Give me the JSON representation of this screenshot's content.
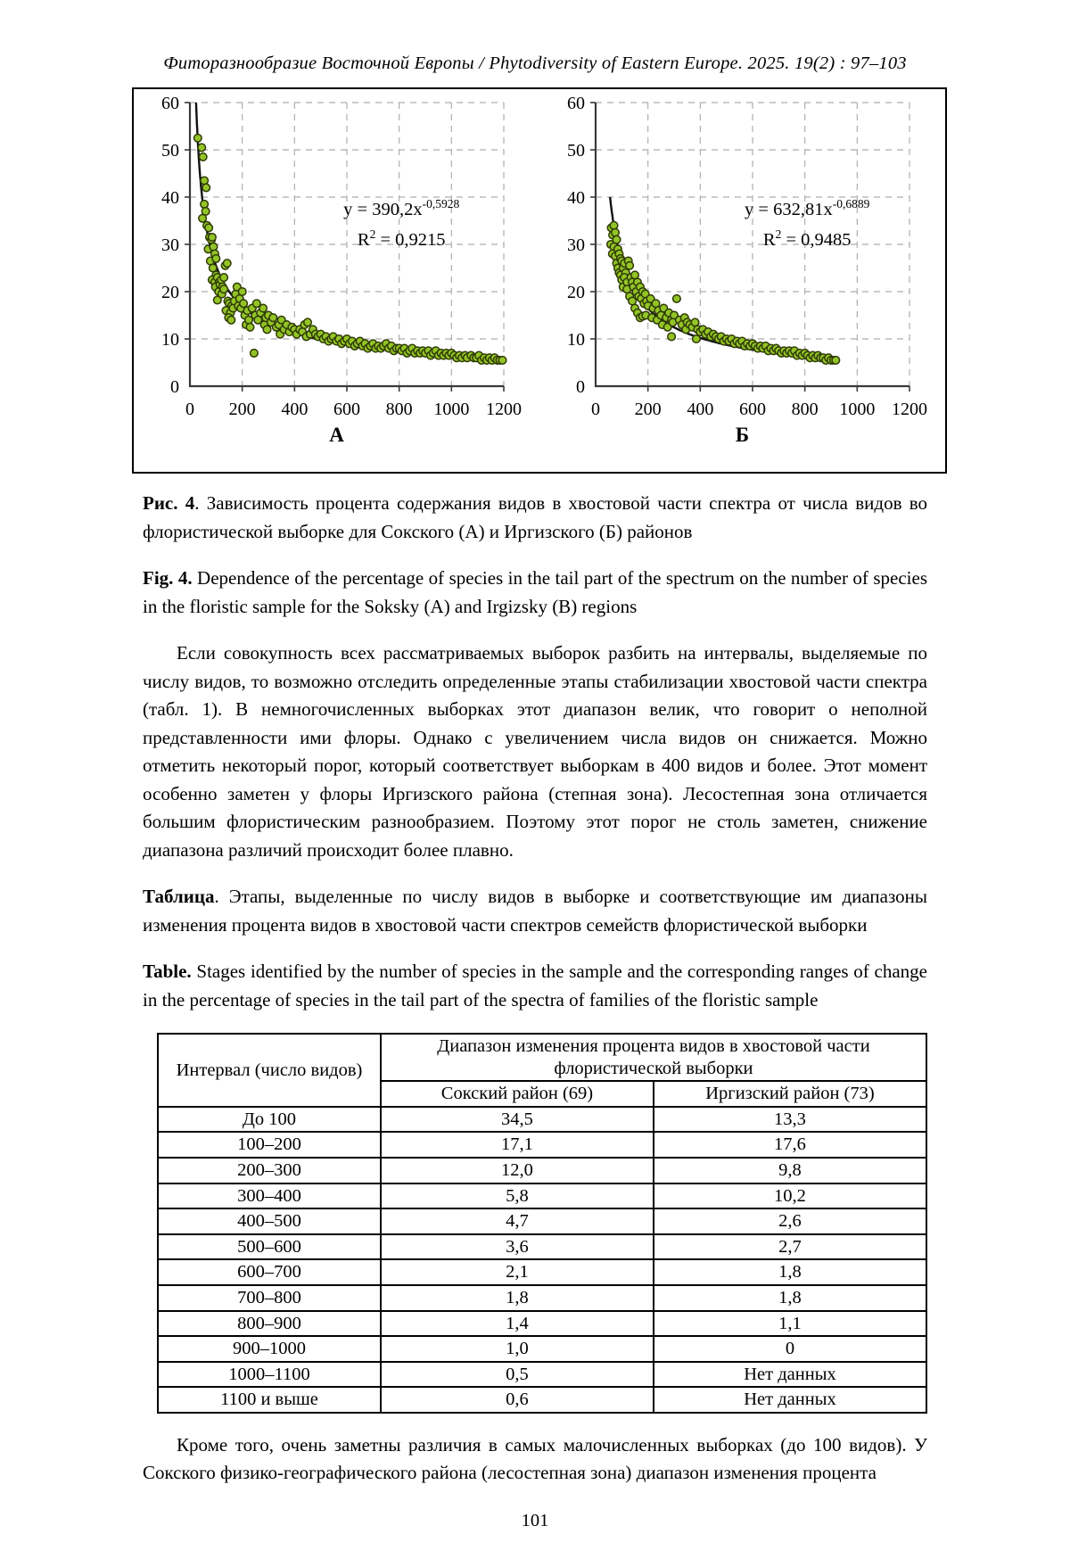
{
  "page": {
    "running_head": "Фиторазнообразие Восточной Европы / Phytodiversity of Eastern Europe. 2025. 19(2) : 97–103",
    "page_number": "101"
  },
  "figure": {
    "caption_ru_bold": "Рис. 4",
    "caption_ru_rest": ". Зависимость процента содержания видов в хвостовой части спектра от числа видов во флористической выборке для Сокского (А) и Иргизского (Б) районов",
    "caption_en_bold": "Fig. 4.",
    "caption_en_rest": " Dependence of the percentage of species in the tail part of the spectrum on the number of species in the floristic sample for the Soksky (A) and Irgizsky (B) regions"
  },
  "body": {
    "paragraph_1": "Если совокупность всех рассматриваемых выборок разбить на интервалы, выделяемые по числу видов, то возможно отследить определенные этапы стабилизации хвостовой части спектра (табл. 1). В немногочисленных выборках этот диапазон велик, что говорит о неполной представленности ими флоры. Однако с увеличением числа видов он снижается. Можно отметить некоторый порог, который соответствует выборкам в 400 видов и более. Этот момент особенно заметен у флоры Иргизского района (степная зона). Лесостепная зона отличается большим флористическим разнообразием. Поэтому этот порог не столь заметен, снижение диапазона различий происходит более плавно.",
    "paragraph_2": "Кроме того, очень заметны различия в самых малочисленных выборках (до 100 видов). У Сокского физико-географического района (лесостепная зона) диапазон изменения процента"
  },
  "table_block": {
    "caption_ru_bold": "Таблица",
    "caption_ru_rest": ". Этапы, выделенные по числу видов в выборке и соответствующие им диапазоны изменения процента видов в хвостовой части спектров семейств флористической выборки",
    "caption_en_bold": "Table.",
    "caption_en_rest": " Stages identified by the number of species in the sample and the corresponding ranges of change in the percentage of species in the tail part of the spectra of families of the floristic sample",
    "interval_header": "Интервал (число видов)",
    "span_header": "Диапазон изменения процента видов в хвостовой части флористической выборки",
    "region_headers": [
      "Сокский район (69)",
      "Иргизский район (73)"
    ],
    "rows": [
      [
        "До 100",
        "34,5",
        "13,3"
      ],
      [
        "100–200",
        "17,1",
        "17,6"
      ],
      [
        "200–300",
        "12,0",
        "9,8"
      ],
      [
        "300–400",
        "5,8",
        "10,2"
      ],
      [
        "400–500",
        "4,7",
        "2,6"
      ],
      [
        "500–600",
        "3,6",
        "2,7"
      ],
      [
        "600–700",
        "2,1",
        "1,8"
      ],
      [
        "700–800",
        "1,8",
        "1,8"
      ],
      [
        "800–900",
        "1,4",
        "1,1"
      ],
      [
        "900–1000",
        "1,0",
        "0"
      ],
      [
        "1000–1100",
        "0,5",
        "Нет данных"
      ],
      [
        "1100 и выше",
        "0,6",
        "Нет данных"
      ]
    ]
  },
  "chart_data": [
    {
      "type": "scatter",
      "label": "А",
      "equation": {
        "base": "y = 390,2x",
        "exponent": "-0,5928"
      },
      "r2": {
        "base": "R",
        "sup": "2",
        "value": " = 0,9215"
      },
      "trend": {
        "a": 390.2,
        "b": -0.5928,
        "x_min": 23.5,
        "x_max": 1200
      },
      "xlim": [
        0,
        1200
      ],
      "ylim": [
        0,
        60
      ],
      "x_ticks": [
        0,
        200,
        400,
        600,
        800,
        1000,
        1200
      ],
      "y_ticks": [
        0,
        10,
        20,
        30,
        40,
        50,
        60
      ],
      "grid": "dashed",
      "point_color": "#92c426",
      "point_stroke": "#2f3a05",
      "line_color": "#111111",
      "points": [
        [
          30,
          52.5
        ],
        [
          45,
          50.5
        ],
        [
          50,
          48.5
        ],
        [
          55,
          43.5
        ],
        [
          62,
          42
        ],
        [
          55,
          38.5
        ],
        [
          60,
          37
        ],
        [
          48,
          35.5
        ],
        [
          65,
          34
        ],
        [
          72,
          33.5
        ],
        [
          75,
          31.5
        ],
        [
          82,
          31
        ],
        [
          70,
          29
        ],
        [
          85,
          31.5
        ],
        [
          90,
          29.5
        ],
        [
          78,
          26.5
        ],
        [
          95,
          28
        ],
        [
          100,
          27
        ],
        [
          88,
          25
        ],
        [
          100,
          23.5
        ],
        [
          85,
          22.5
        ],
        [
          95,
          22
        ],
        [
          105,
          23
        ],
        [
          112,
          22
        ],
        [
          98,
          21
        ],
        [
          110,
          20
        ],
        [
          115,
          21.5
        ],
        [
          120,
          22.5
        ],
        [
          105,
          18.2
        ],
        [
          122,
          19.5
        ],
        [
          125,
          21
        ],
        [
          130,
          23
        ],
        [
          135,
          25.5
        ],
        [
          142,
          26
        ],
        [
          130,
          20.5
        ],
        [
          145,
          18
        ],
        [
          150,
          17.5
        ],
        [
          138,
          16
        ],
        [
          155,
          15.5
        ],
        [
          160,
          17
        ],
        [
          148,
          14.5
        ],
        [
          165,
          16.5
        ],
        [
          170,
          18
        ],
        [
          175,
          19.5
        ],
        [
          180,
          21
        ],
        [
          158,
          14
        ],
        [
          185,
          17
        ],
        [
          190,
          18.5
        ],
        [
          200,
          20
        ],
        [
          195,
          16.5
        ],
        [
          205,
          17.5
        ],
        [
          210,
          15
        ],
        [
          220,
          16
        ],
        [
          215,
          13
        ],
        [
          225,
          14
        ],
        [
          230,
          12.5
        ],
        [
          238,
          16.5
        ],
        [
          245,
          7
        ],
        [
          250,
          15
        ],
        [
          255,
          17.5
        ],
        [
          260,
          14
        ],
        [
          270,
          15.5
        ],
        [
          280,
          16.5
        ],
        [
          285,
          13
        ],
        [
          290,
          14.5
        ],
        [
          300,
          15
        ],
        [
          295,
          12
        ],
        [
          310,
          13.5
        ],
        [
          318,
          14.5
        ],
        [
          330,
          12.5
        ],
        [
          340,
          13
        ],
        [
          350,
          14
        ],
        [
          345,
          11
        ],
        [
          360,
          12
        ],
        [
          370,
          13
        ],
        [
          380,
          11.5
        ],
        [
          390,
          12.5
        ],
        [
          400,
          12
        ],
        [
          408,
          11
        ],
        [
          420,
          12
        ],
        [
          430,
          11.5
        ],
        [
          438,
          13
        ],
        [
          450,
          13.5
        ],
        [
          445,
          10.5
        ],
        [
          460,
          11
        ],
        [
          470,
          12
        ],
        [
          480,
          11
        ],
        [
          490,
          10.5
        ],
        [
          500,
          11
        ],
        [
          510,
          10
        ],
        [
          520,
          10.5
        ],
        [
          530,
          9.5
        ],
        [
          540,
          10
        ],
        [
          548,
          10.5
        ],
        [
          560,
          9.5
        ],
        [
          570,
          10
        ],
        [
          580,
          9
        ],
        [
          590,
          9.5
        ],
        [
          600,
          10
        ],
        [
          610,
          9
        ],
        [
          620,
          9.5
        ],
        [
          630,
          8.5
        ],
        [
          640,
          9
        ],
        [
          650,
          9.5
        ],
        [
          660,
          8.5
        ],
        [
          670,
          9
        ],
        [
          680,
          8
        ],
        [
          690,
          8.5
        ],
        [
          700,
          9
        ],
        [
          710,
          8
        ],
        [
          720,
          8.5
        ],
        [
          730,
          8
        ],
        [
          740,
          8.5
        ],
        [
          750,
          9
        ],
        [
          760,
          8
        ],
        [
          770,
          8.5
        ],
        [
          780,
          7.5
        ],
        [
          790,
          8
        ],
        [
          800,
          8
        ],
        [
          810,
          7.5
        ],
        [
          820,
          8
        ],
        [
          830,
          7
        ],
        [
          840,
          7.5
        ],
        [
          850,
          8
        ],
        [
          860,
          7
        ],
        [
          870,
          7.5
        ],
        [
          880,
          7
        ],
        [
          890,
          7.5
        ],
        [
          900,
          7
        ],
        [
          912,
          7.5
        ],
        [
          920,
          6.5
        ],
        [
          930,
          7
        ],
        [
          940,
          7.5
        ],
        [
          950,
          6.5
        ],
        [
          960,
          7
        ],
        [
          970,
          6.5
        ],
        [
          980,
          7
        ],
        [
          990,
          6.5
        ],
        [
          1000,
          7
        ],
        [
          1010,
          6.5
        ],
        [
          1020,
          6
        ],
        [
          1030,
          6.5
        ],
        [
          1040,
          6
        ],
        [
          1052,
          6.5
        ],
        [
          1060,
          6
        ],
        [
          1075,
          6.5
        ],
        [
          1085,
          6
        ],
        [
          1095,
          6
        ],
        [
          1105,
          6.5
        ],
        [
          1115,
          5.5
        ],
        [
          1125,
          6
        ],
        [
          1135,
          5.5
        ],
        [
          1145,
          6
        ],
        [
          1155,
          5.5
        ],
        [
          1165,
          6
        ],
        [
          1175,
          5.5
        ],
        [
          1185,
          5.5
        ],
        [
          1195,
          5.5
        ]
      ]
    },
    {
      "type": "scatter",
      "label": "Б",
      "equation": {
        "base": "y = 632,81x",
        "exponent": "-0,6889"
      },
      "r2": {
        "base": "R",
        "sup": "2",
        "value": " = 0,9485"
      },
      "trend": {
        "a": 632.81,
        "b": -0.6889,
        "x_min": 55,
        "x_max": 920
      },
      "xlim": [
        0,
        1200
      ],
      "ylim": [
        0,
        60
      ],
      "x_ticks": [
        0,
        200,
        400,
        600,
        800,
        1000,
        1200
      ],
      "y_ticks": [
        0,
        10,
        20,
        30,
        40,
        50,
        60
      ],
      "grid": "dashed",
      "point_color": "#92c426",
      "point_stroke": "#2f3a05",
      "line_color": "#111111",
      "points": [
        [
          60,
          33.5
        ],
        [
          65,
          32
        ],
        [
          58,
          30
        ],
        [
          70,
          34
        ],
        [
          75,
          32.5
        ],
        [
          70,
          29.5
        ],
        [
          64,
          28
        ],
        [
          80,
          31
        ],
        [
          75,
          27.5
        ],
        [
          85,
          29
        ],
        [
          80,
          26
        ],
        [
          90,
          28
        ],
        [
          85,
          25
        ],
        [
          95,
          27
        ],
        [
          90,
          24
        ],
        [
          100,
          26.5
        ],
        [
          95,
          23.5
        ],
        [
          105,
          25
        ],
        [
          100,
          22.5
        ],
        [
          110,
          26
        ],
        [
          105,
          21
        ],
        [
          115,
          24
        ],
        [
          110,
          23
        ],
        [
          120,
          22
        ],
        [
          125,
          26.5
        ],
        [
          130,
          25.5
        ],
        [
          120,
          20.5
        ],
        [
          135,
          23
        ],
        [
          140,
          22
        ],
        [
          130,
          19
        ],
        [
          145,
          21
        ],
        [
          150,
          23.5
        ],
        [
          140,
          18
        ],
        [
          155,
          20
        ],
        [
          160,
          22
        ],
        [
          150,
          16.5
        ],
        [
          165,
          19
        ],
        [
          170,
          21
        ],
        [
          160,
          15.5
        ],
        [
          175,
          18.5
        ],
        [
          180,
          20
        ],
        [
          170,
          14.5
        ],
        [
          185,
          17.5
        ],
        [
          190,
          19.5
        ],
        [
          180,
          14.8
        ],
        [
          195,
          18
        ],
        [
          200,
          17
        ],
        [
          192,
          15
        ],
        [
          210,
          18.5
        ],
        [
          220,
          16.5
        ],
        [
          215,
          14.5
        ],
        [
          230,
          17.5
        ],
        [
          240,
          16
        ],
        [
          235,
          14
        ],
        [
          250,
          15
        ],
        [
          260,
          16.5
        ],
        [
          255,
          13
        ],
        [
          270,
          14.5
        ],
        [
          280,
          15.5
        ],
        [
          275,
          12.5
        ],
        [
          290,
          14
        ],
        [
          300,
          15
        ],
        [
          295,
          13.5
        ],
        [
          310,
          18.5
        ],
        [
          320,
          14
        ],
        [
          330,
          13
        ],
        [
          340,
          14.5
        ],
        [
          350,
          13.5
        ],
        [
          345,
          12
        ],
        [
          290,
          10.5
        ],
        [
          360,
          13
        ],
        [
          370,
          12.5
        ],
        [
          380,
          13.5
        ],
        [
          390,
          12
        ],
        [
          385,
          10
        ],
        [
          400,
          11.5
        ],
        [
          410,
          12
        ],
        [
          420,
          11
        ],
        [
          430,
          11.5
        ],
        [
          440,
          10.5
        ],
        [
          450,
          11
        ],
        [
          460,
          10.5
        ],
        [
          470,
          10
        ],
        [
          480,
          10.5
        ],
        [
          490,
          9.5
        ],
        [
          500,
          10
        ],
        [
          510,
          9.5
        ],
        [
          520,
          10
        ],
        [
          530,
          9
        ],
        [
          540,
          9.5
        ],
        [
          550,
          9
        ],
        [
          560,
          9.5
        ],
        [
          570,
          8.5
        ],
        [
          580,
          9
        ],
        [
          590,
          8.5
        ],
        [
          600,
          9
        ],
        [
          610,
          8.5
        ],
        [
          620,
          8
        ],
        [
          630,
          8.5
        ],
        [
          640,
          8
        ],
        [
          650,
          8.5
        ],
        [
          660,
          7.5
        ],
        [
          670,
          8
        ],
        [
          680,
          7.5
        ],
        [
          690,
          8
        ],
        [
          700,
          7.5
        ],
        [
          710,
          7
        ],
        [
          720,
          7.5
        ],
        [
          730,
          7
        ],
        [
          740,
          7.5
        ],
        [
          750,
          7
        ],
        [
          760,
          7.5
        ],
        [
          770,
          6.5
        ],
        [
          780,
          7
        ],
        [
          790,
          6.5
        ],
        [
          800,
          7
        ],
        [
          810,
          6.5
        ],
        [
          820,
          6
        ],
        [
          830,
          6.5
        ],
        [
          840,
          6
        ],
        [
          850,
          6.5
        ],
        [
          860,
          6
        ],
        [
          870,
          6
        ],
        [
          880,
          5.5
        ],
        [
          890,
          6
        ],
        [
          900,
          5.5
        ],
        [
          910,
          5.5
        ],
        [
          918,
          5.5
        ]
      ]
    }
  ]
}
